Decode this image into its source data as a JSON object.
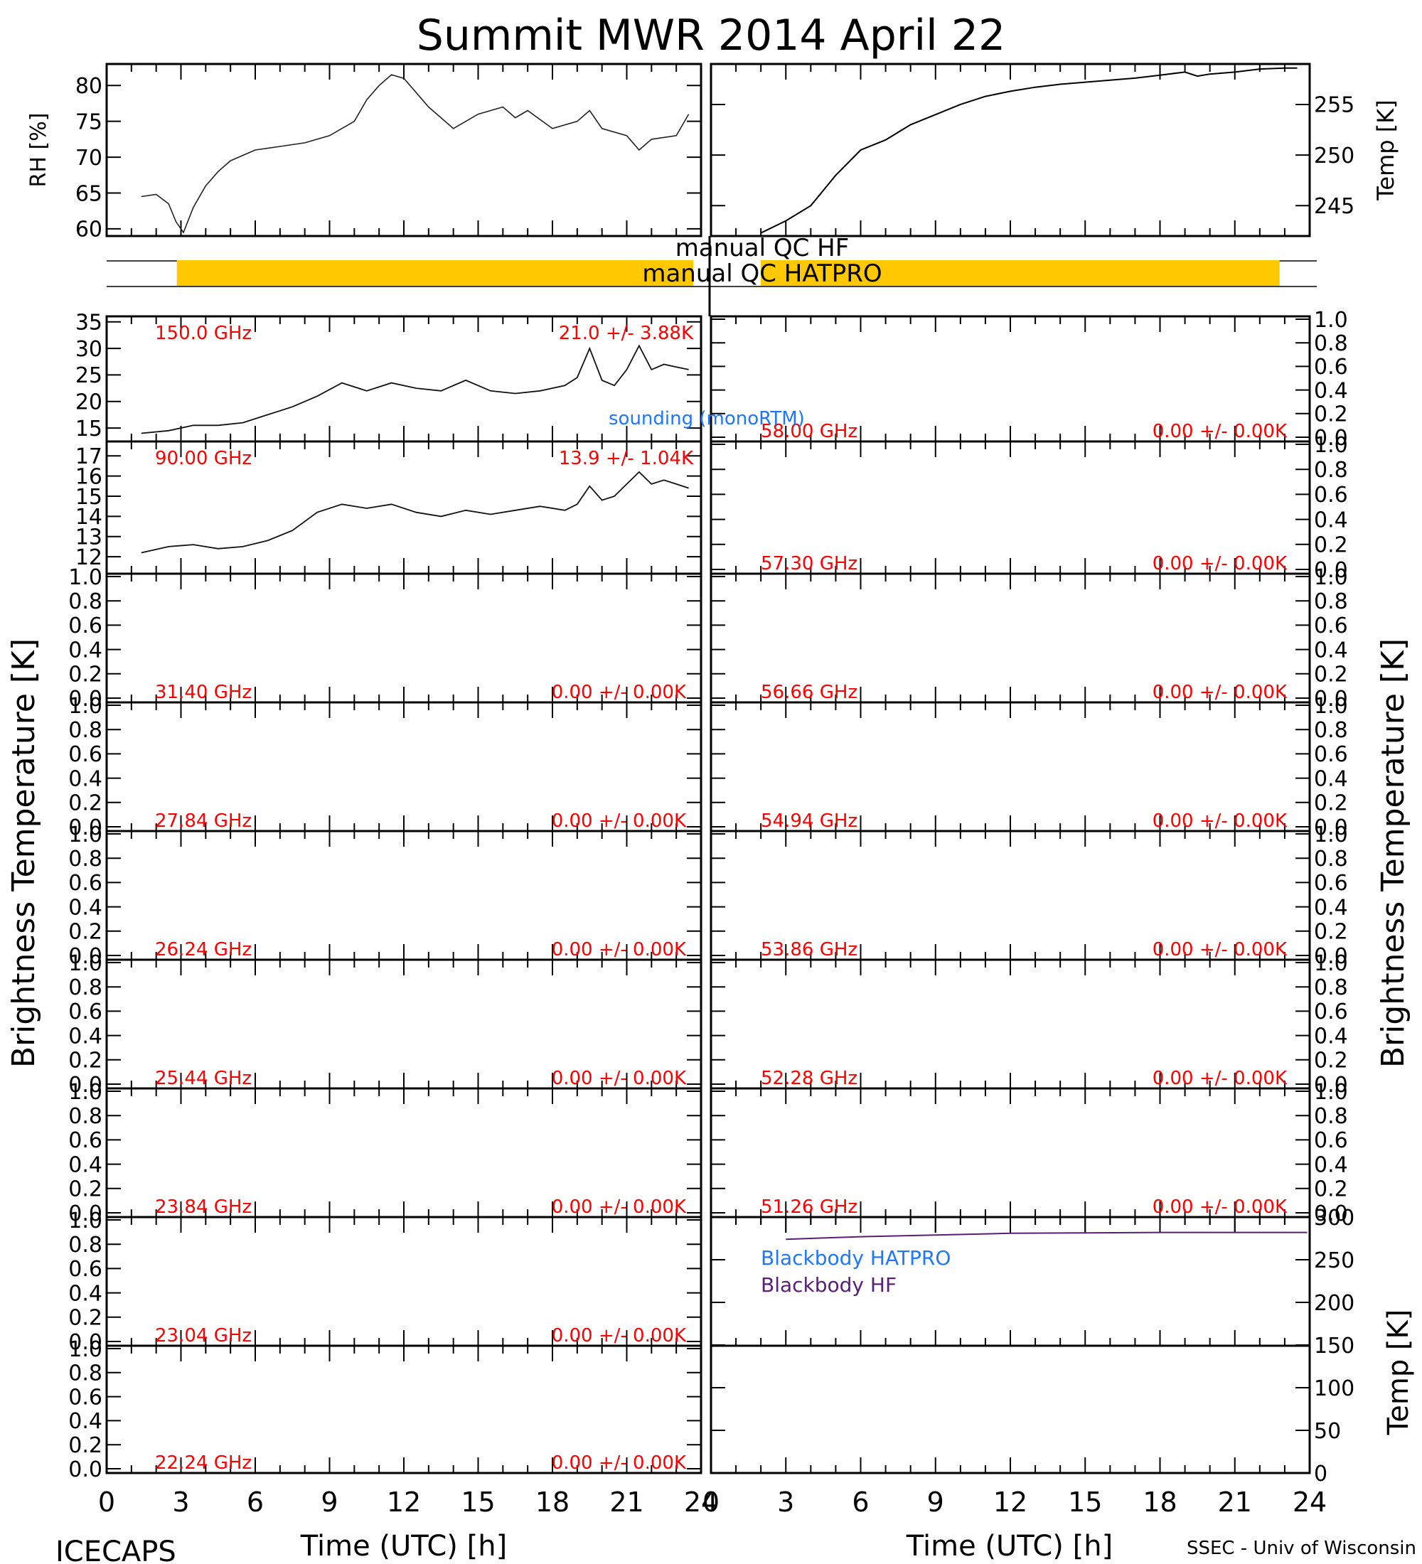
{
  "title": "Summit MWR 2014 April 22",
  "footer": {
    "left": "ICECAPS",
    "right": "SSEC - Univ of Wisconsin"
  },
  "colors": {
    "axis": "#000000",
    "label_red": "#ff0000",
    "qc_bar": "#ffc800",
    "sounding": "#1e78ff",
    "blackbody_hatpro": "#1e78ff",
    "blackbody_hf": "#5a1e78"
  },
  "chart_data": [
    {
      "type": "line",
      "panel": "rh",
      "ylabel": "RH [%]",
      "xlim": [
        0,
        24
      ],
      "ylim": [
        59,
        83
      ],
      "yticks": [
        60,
        65,
        70,
        75,
        80
      ],
      "x": [
        1.4,
        2.0,
        2.5,
        2.8,
        3.1,
        3.5,
        4.0,
        4.5,
        5.0,
        6.0,
        7.0,
        8.0,
        9.0,
        10.0,
        10.5,
        11.0,
        11.5,
        12.0,
        12.5,
        13.0,
        14.0,
        15.0,
        16.0,
        16.5,
        17.0,
        18.0,
        19.0,
        19.5,
        20.0,
        21.0,
        21.5,
        22.0,
        23.0,
        23.5
      ],
      "y": [
        64.5,
        64.8,
        63.5,
        61.0,
        59.5,
        63.0,
        66.0,
        68.0,
        69.5,
        71.0,
        71.5,
        72.0,
        73.0,
        75.0,
        78.0,
        80.0,
        81.5,
        81.0,
        79.0,
        77.0,
        74.0,
        76.0,
        77.0,
        75.5,
        76.5,
        74.0,
        75.0,
        76.5,
        74.0,
        73.0,
        71.0,
        72.5,
        73.0,
        76.0
      ]
    },
    {
      "type": "line",
      "panel": "temp",
      "ylabel": "Temp [K]",
      "xlim": [
        0,
        24
      ],
      "ylim": [
        242,
        259
      ],
      "yticks": [
        245,
        250,
        255
      ],
      "x": [
        2.0,
        3.0,
        4.0,
        5.0,
        6.0,
        7.0,
        8.0,
        9.0,
        10.0,
        11.0,
        12.0,
        13.0,
        14.0,
        15.0,
        16.0,
        17.0,
        18.0,
        19.0,
        19.5,
        20.0,
        21.0,
        22.0,
        23.0,
        23.5
      ],
      "y": [
        242.3,
        243.5,
        245.0,
        248.0,
        250.5,
        251.5,
        253.0,
        254.0,
        255.0,
        255.8,
        256.3,
        256.7,
        257.0,
        257.2,
        257.4,
        257.6,
        257.9,
        258.2,
        257.8,
        258.0,
        258.2,
        258.5,
        258.6,
        258.6
      ]
    },
    {
      "type": "line",
      "panel": "tb-150",
      "frequency": "150.0 GHz",
      "stats": "21.0 +/- 3.88K",
      "xlim": [
        0,
        24
      ],
      "ylim": [
        13,
        35.5
      ],
      "yticks": [
        15,
        20,
        25,
        30,
        35
      ],
      "x": [
        1.4,
        2.5,
        3.5,
        4.5,
        5.5,
        6.5,
        7.5,
        8.5,
        9.5,
        10.5,
        11.5,
        12.5,
        13.5,
        14.5,
        15.5,
        16.5,
        17.5,
        18.5,
        19.0,
        19.5,
        20.0,
        20.5,
        21.0,
        21.5,
        22.0,
        22.5,
        23.0,
        23.5
      ],
      "y": [
        14.0,
        14.5,
        15.5,
        15.5,
        16.0,
        17.5,
        19.0,
        21.0,
        23.5,
        22.0,
        23.5,
        22.5,
        22.0,
        24.0,
        22.0,
        21.5,
        22.0,
        23.0,
        24.5,
        30.0,
        24.0,
        23.0,
        26.0,
        30.5,
        26.0,
        27.0,
        26.5,
        26.0
      ]
    },
    {
      "type": "line",
      "panel": "tb-90",
      "frequency": "90.00 GHz",
      "stats": "13.9 +/- 1.04K",
      "xlim": [
        0,
        24
      ],
      "ylim": [
        11.3,
        17.5
      ],
      "yticks": [
        12,
        13,
        14,
        15,
        16,
        17
      ],
      "x": [
        1.4,
        2.5,
        3.5,
        4.5,
        5.5,
        6.5,
        7.5,
        8.5,
        9.5,
        10.5,
        11.5,
        12.5,
        13.5,
        14.5,
        15.5,
        16.5,
        17.5,
        18.5,
        19.0,
        19.5,
        20.0,
        20.5,
        21.0,
        21.5,
        22.0,
        22.5,
        23.0,
        23.5
      ],
      "y": [
        12.2,
        12.5,
        12.6,
        12.4,
        12.5,
        12.8,
        13.3,
        14.2,
        14.6,
        14.4,
        14.6,
        14.2,
        14.0,
        14.3,
        14.1,
        14.3,
        14.5,
        14.3,
        14.6,
        15.5,
        14.8,
        15.0,
        15.6,
        16.2,
        15.6,
        15.8,
        15.6,
        15.4
      ]
    },
    {
      "type": "line",
      "panel": "blackbody",
      "ylabel": "Temp [K]",
      "xlim": [
        0,
        24
      ],
      "ylim": [
        0,
        300
      ],
      "yticks": [
        0,
        50,
        100,
        150,
        200,
        250,
        300
      ],
      "series": [
        {
          "name": "Blackbody HATPRO",
          "x": [],
          "y": []
        },
        {
          "name": "Blackbody HF",
          "x": [
            3.0,
            6.0,
            9.0,
            12.0,
            15.0,
            18.0,
            21.0,
            23.9
          ],
          "y": [
            274.0,
            277.0,
            279.0,
            281.0,
            281.5,
            282.0,
            282.0,
            282.0
          ]
        }
      ]
    }
  ],
  "qc": {
    "hf_label": "manual QC HF",
    "hatpro_label": "manual QC HATPRO",
    "hatpro_flag_ranges": [
      [
        1.4,
        23.4
      ]
    ]
  },
  "sounding_label": "sounding (monoRTM)",
  "left_channels": [
    "31.40 GHz",
    "27.84 GHz",
    "26.24 GHz",
    "25.44 GHz",
    "23.84 GHz",
    "23.04 GHz",
    "22.24 GHz"
  ],
  "right_channels": [
    "58.00 GHz",
    "57.30 GHz",
    "56.66 GHz",
    "54.94 GHz",
    "53.86 GHz",
    "52.28 GHz",
    "51.26 GHz"
  ],
  "empty_stats": "0.00 +/- 0.00K",
  "unit_axis_ticks": [
    "0.0",
    "0.2",
    "0.4",
    "0.6",
    "0.8",
    "1.0"
  ],
  "xticks": [
    "0",
    "3",
    "6",
    "9",
    "12",
    "15",
    "18",
    "21",
    "24"
  ],
  "xtick_values": [
    0,
    3,
    6,
    9,
    12,
    15,
    18,
    21,
    24
  ],
  "xlabel": "Time (UTC) [h]",
  "ylabel_brightness": "Brightness Temperature [K]",
  "ylabel_blackbody": "Temp [K]"
}
